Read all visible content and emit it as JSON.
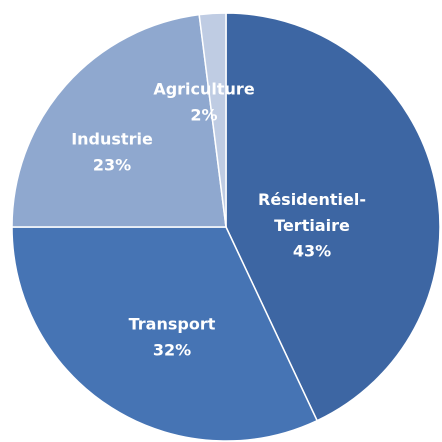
{
  "chart_data": {
    "type": "pie",
    "categories": [
      "Résidentiel-Tertiaire",
      "Transport",
      "Industrie",
      "Agriculture"
    ],
    "values": [
      43,
      32,
      23,
      2
    ],
    "value_labels": [
      "43%",
      "32%",
      "23%",
      "2%"
    ],
    "colors": [
      "#3d66a3",
      "#4674b4",
      "#8fa8cf",
      "#bfcce3"
    ]
  }
}
